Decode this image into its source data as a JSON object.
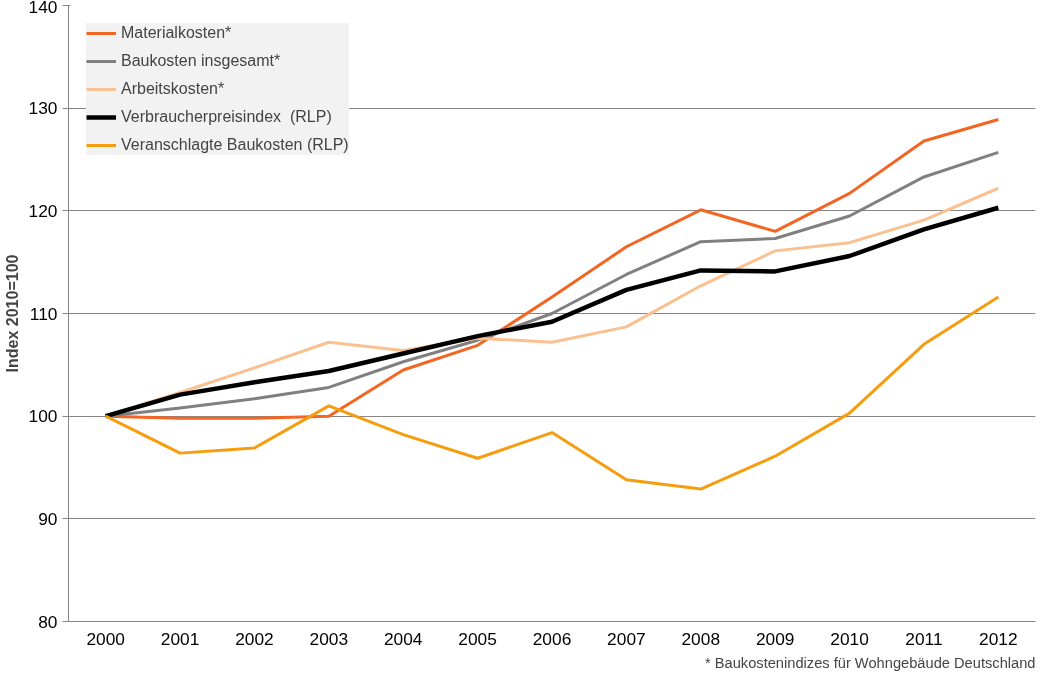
{
  "chart_data": {
    "type": "line",
    "ylabel": "Index 2010=100",
    "categories": [
      "2000",
      "2001",
      "2002",
      "2003",
      "2004",
      "2005",
      "2006",
      "2007",
      "2008",
      "2009",
      "2010",
      "2011",
      "2012"
    ],
    "series": [
      {
        "name": "Materialkosten*",
        "color": "#f26522",
        "values": [
          100,
          99.8,
          99.8,
          100.0,
          104.5,
          106.9,
          111.6,
          116.5,
          120.1,
          118.0,
          121.7,
          126.8,
          128.9
        ]
      },
      {
        "name": "Baukosten insgesamt*",
        "color": "#808080",
        "values": [
          100,
          100.8,
          101.7,
          102.8,
          105.3,
          107.4,
          110.0,
          113.8,
          117.0,
          117.3,
          119.5,
          123.3,
          125.7
        ]
      },
      {
        "name": "Arbeitskosten*",
        "color": "#fac090",
        "values": [
          100,
          102.3,
          104.7,
          107.2,
          106.4,
          107.6,
          107.2,
          108.7,
          112.7,
          116.1,
          116.9,
          119.1,
          122.2
        ]
      },
      {
        "name": "Verbraucherpreisindex  (RLP)",
        "color": "#000000",
        "values": [
          100,
          102.1,
          103.3,
          104.4,
          106.1,
          107.8,
          109.2,
          112.3,
          114.2,
          114.1,
          115.6,
          118.2,
          120.3
        ]
      },
      {
        "name": "Veranschlagte Baukosten (RLP)",
        "color": "#f59d0e",
        "values": [
          100,
          96.4,
          96.9,
          101.0,
          98.2,
          95.9,
          98.4,
          93.8,
          92.9,
          96.1,
          100.3,
          107.0,
          111.6
        ]
      }
    ],
    "ylim": [
      80,
      140
    ],
    "yticks": [
      80,
      90,
      100,
      110,
      120,
      130,
      140
    ],
    "grid": "y",
    "legend": "top left",
    "marker": "none",
    "line_style": "solid",
    "annotations": [
      "* Baukostenindizes für Wohngebäude Deutschland"
    ]
  }
}
